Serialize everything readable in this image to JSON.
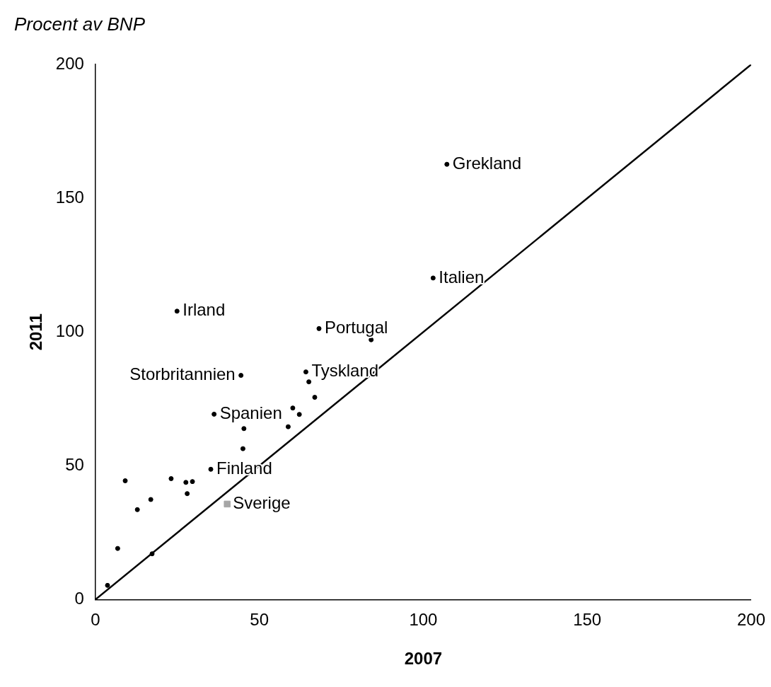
{
  "chart_data": {
    "type": "scatter",
    "title": "Procent av BNP",
    "xlabel": "2007",
    "ylabel": "2011",
    "xlim": [
      0,
      200
    ],
    "ylim": [
      0,
      200
    ],
    "xticks": [
      0,
      50,
      100,
      150,
      200
    ],
    "yticks": [
      0,
      50,
      100,
      150,
      200
    ],
    "grid": false,
    "legend": false,
    "series": [
      {
        "color": "#000000",
        "marker": "circle",
        "x": [
          3.7,
          6.8,
          17.3,
          12.8,
          16.9,
          9.1,
          23.1,
          27.6,
          29.6,
          28.0,
          35.2,
          45.0,
          45.3,
          36.2,
          60.2,
          62.2,
          58.8,
          66.9,
          65.1,
          64.2,
          44.4,
          24.9,
          68.2,
          84.1,
          103.0,
          107.2
        ],
        "values": [
          5.3,
          19.1,
          17.1,
          33.6,
          37.4,
          44.4,
          45.2,
          43.8,
          44.1,
          39.6,
          48.7,
          56.4,
          63.9,
          69.3,
          71.6,
          69.2,
          64.6,
          75.6,
          81.4,
          85.1,
          83.8,
          107.8,
          101.3,
          97.1,
          120.2,
          162.7
        ]
      },
      {
        "color": "#a6a6a6",
        "marker": "square",
        "x": [
          40.2
        ],
        "values": [
          35.7
        ]
      },
      {
        "type": "line",
        "color": "#000000",
        "marker": "none",
        "line_style": "solid",
        "x": [
          0,
          200
        ],
        "values": [
          0,
          200
        ]
      }
    ],
    "annotations": [
      {
        "text": "Grekland",
        "x": 107.2,
        "y": 162.7
      },
      {
        "text": "Italien",
        "x": 103.0,
        "y": 120.2
      },
      {
        "text": "Irland",
        "x": 24.9,
        "y": 107.8
      },
      {
        "text": "Portugal",
        "x": 68.2,
        "y": 101.3
      },
      {
        "text": "Tyskland",
        "x": 64.2,
        "y": 85.1
      },
      {
        "text": "Storbritannien",
        "x": 44.4,
        "y": 83.8
      },
      {
        "text": "Spanien",
        "x": 36.2,
        "y": 69.3
      },
      {
        "text": "Finland",
        "x": 35.2,
        "y": 48.7
      },
      {
        "text": "Sverige",
        "x": 40.2,
        "y": 35.7
      }
    ]
  }
}
